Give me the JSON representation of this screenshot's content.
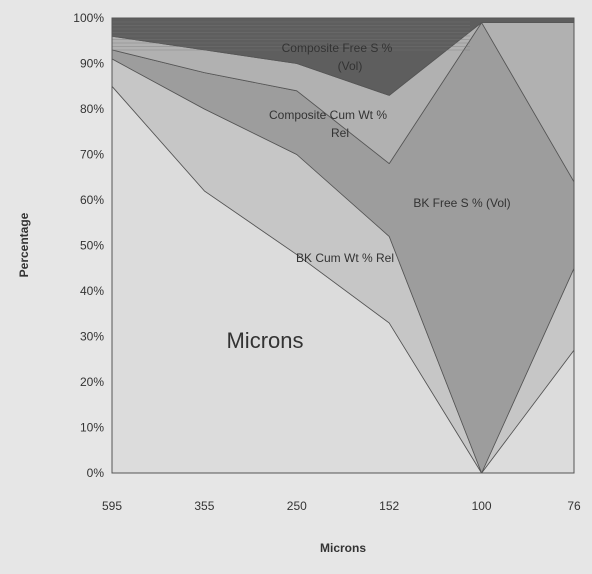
{
  "chart_data": {
    "type": "area",
    "stacked": true,
    "percent_stacked": true,
    "title": "",
    "xlabel": "Microns",
    "ylabel": "Percentage",
    "categories": [
      "595",
      "355",
      "250",
      "152",
      "100",
      "76"
    ],
    "y_ticks": [
      "0%",
      "10%",
      "20%",
      "30%",
      "40%",
      "50%",
      "60%",
      "70%",
      "80%",
      "90%",
      "100%"
    ],
    "ylim": [
      0,
      100
    ],
    "grid": false,
    "legend": "none",
    "layer_boundaries_percent": {
      "boundary_1": [
        85,
        62,
        48,
        33,
        0,
        27
      ],
      "boundary_2": [
        91,
        80,
        70,
        52,
        0,
        45
      ],
      "boundary_3": [
        93,
        88,
        84,
        68,
        99,
        64
      ],
      "boundary_4": [
        96,
        93,
        90,
        83,
        99,
        99
      ]
    },
    "series": [
      {
        "name": "Microns",
        "color": "#dcdcdc",
        "values": [
          85,
          62,
          48,
          33,
          0,
          27
        ]
      },
      {
        "name": "BK Cum Wt % Rel",
        "color": "#c6c6c6",
        "values": [
          6,
          18,
          22,
          19,
          0,
          18
        ]
      },
      {
        "name": "BK Free S % (Vol)",
        "color": "#9d9d9d",
        "values": [
          2,
          8,
          14,
          16,
          99,
          19
        ]
      },
      {
        "name": "Composite Cum Wt % Rel",
        "color": "#b1b1b1",
        "values": [
          3,
          5,
          6,
          15,
          0,
          35
        ]
      },
      {
        "name": "Composite Free S % (Vol)",
        "color": "#5e5e5e",
        "values": [
          4,
          7,
          10,
          17,
          1,
          1
        ]
      }
    ],
    "area_labels": [
      {
        "series": "Composite Free S % (Vol)",
        "lines": [
          "Composite Free S %",
          "(Vol)"
        ]
      },
      {
        "series": "Composite Cum Wt % Rel",
        "lines": [
          "Composite Cum Wt %",
          "Rel"
        ]
      },
      {
        "series": "BK Free S % (Vol)",
        "lines": [
          "BK Free S % (Vol)"
        ]
      },
      {
        "series": "BK Cum Wt % Rel",
        "lines": [
          "BK Cum Wt % Rel"
        ]
      },
      {
        "series": "Microns",
        "lines": [
          "Microns"
        ]
      }
    ]
  }
}
